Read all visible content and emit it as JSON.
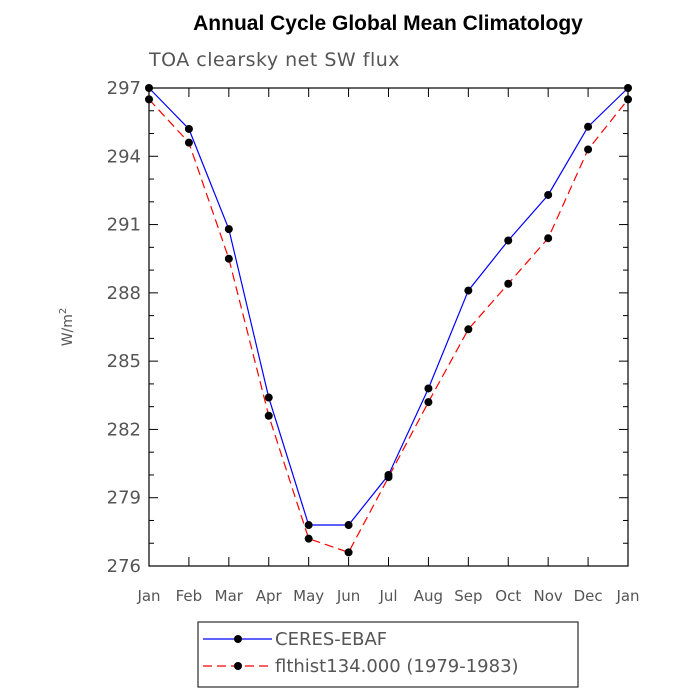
{
  "chart_data": {
    "type": "line",
    "title": "Annual Cycle Global Mean Climatology",
    "subtitle": "TOA clearsky net SW flux",
    "xlabel": "",
    "ylabel": "W/m",
    "ylabel_superscript": "2",
    "ylim": [
      276,
      297
    ],
    "yticks": [
      "276",
      "279",
      "282",
      "285",
      "288",
      "291",
      "294",
      "297"
    ],
    "categories": [
      "Jan",
      "Feb",
      "Mar",
      "Apr",
      "May",
      "Jun",
      "Jul",
      "Aug",
      "Sep",
      "Oct",
      "Nov",
      "Dec",
      "Jan"
    ],
    "grid": false,
    "legend_position": "bottom",
    "series": [
      {
        "name": "CERES-EBAF",
        "color": "#0000ff",
        "line_style": "solid",
        "marker": "filled-circle",
        "values": [
          297.0,
          295.2,
          290.8,
          283.4,
          277.8,
          277.8,
          280.0,
          283.8,
          288.1,
          290.3,
          292.3,
          295.3,
          297.0
        ]
      },
      {
        "name": "flthist134.000 (1979-1983)",
        "color": "#ff0000",
        "line_style": "dashed",
        "marker": "filled-circle",
        "values": [
          296.5,
          294.6,
          289.5,
          282.6,
          277.2,
          276.6,
          279.9,
          283.2,
          286.4,
          288.4,
          290.4,
          294.3,
          296.5
        ]
      }
    ]
  }
}
